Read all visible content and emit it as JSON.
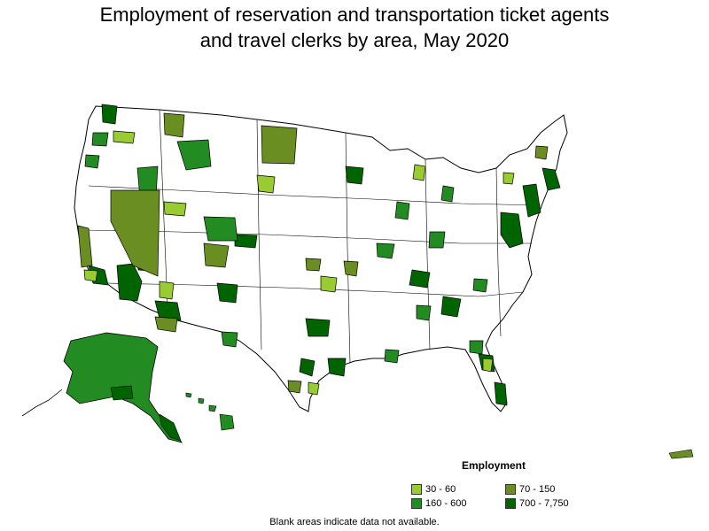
{
  "title_line1": "Employment of reservation and transportation ticket agents",
  "title_line2": "and travel clerks by area, May 2020",
  "legend": {
    "title": "Employment",
    "items": [
      {
        "label": "30 - 60",
        "color": "#99cc33"
      },
      {
        "label": "70 - 150",
        "color": "#6b8e23"
      },
      {
        "label": "160 - 600",
        "color": "#228b22"
      },
      {
        "label": "700 - 7,750",
        "color": "#006400"
      }
    ]
  },
  "note": "Blank areas indicate data not available.",
  "colors": {
    "border": "#000000",
    "land": "#ffffff"
  }
}
